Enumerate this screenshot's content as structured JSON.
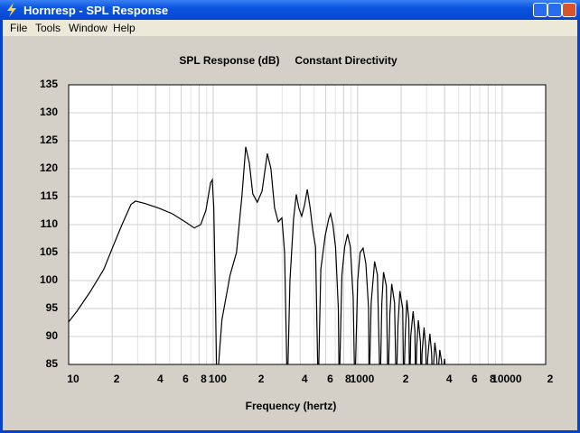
{
  "window": {
    "title": "Hornresp - SPL Response"
  },
  "menu": [
    "File",
    "Tools",
    "Window",
    "Help"
  ],
  "chart_data": {
    "type": "line",
    "title": "SPL Response (dB)",
    "subtitle": "Constant Directivity",
    "xlabel": "Frequency (hertz)",
    "xscale": "log",
    "grid": true,
    "color": "#000000",
    "xlim": [
      10,
      20000
    ],
    "ylim": [
      85,
      135
    ],
    "xticks": [
      10,
      {
        "value": 20,
        "label": "2"
      },
      {
        "value": 40,
        "label": "4"
      },
      {
        "value": 60,
        "label": "6"
      },
      {
        "value": 80,
        "label": "8"
      },
      100,
      {
        "value": 200,
        "label": "2"
      },
      {
        "value": 400,
        "label": "4"
      },
      {
        "value": 600,
        "label": "6"
      },
      {
        "value": 800,
        "label": "8"
      },
      1000,
      {
        "value": 2000,
        "label": "2"
      },
      {
        "value": 4000,
        "label": "4"
      },
      {
        "value": 6000,
        "label": "6"
      },
      {
        "value": 8000,
        "label": "8"
      },
      10000,
      {
        "value": 20000,
        "label": "2"
      }
    ],
    "xminorticks": [
      30,
      50,
      70,
      90,
      300,
      500,
      700,
      900,
      3000,
      5000,
      7000,
      9000
    ],
    "yticks": [
      85,
      90,
      95,
      100,
      105,
      110,
      115,
      120,
      125,
      130,
      135
    ],
    "x": [
      10,
      11.4,
      14.1,
      17.5,
      20.2,
      23.4,
      27,
      29,
      33.5,
      41.6,
      51.7,
      64,
      74,
      82,
      89,
      96,
      98.6,
      101,
      104,
      106,
      109,
      115,
      131,
      145,
      158,
      168,
      178,
      188,
      202,
      218,
      237,
      251,
      266,
      282,
      299,
      312,
      326,
      340,
      360,
      376,
      391,
      410,
      429,
      448,
      469,
      489,
      511,
      533,
      556,
      596,
      630,
      649,
      674,
      703,
      735,
      745,
      778,
      813,
      851,
      890,
      931,
      956,
      1000,
      1040,
      1090,
      1140,
      1190,
      1200,
      1240,
      1310,
      1370,
      1430,
      1470,
      1510,
      1580,
      1620,
      1670,
      1720,
      1800,
      1850,
      1900,
      1960,
      2050,
      2080,
      2140,
      2190,
      2260,
      2290,
      2330,
      2420,
      2490,
      2520,
      2560,
      2630,
      2720,
      2750,
      2790,
      2880,
      2960,
      3000,
      3050,
      3160,
      3250,
      3300,
      3360,
      3420,
      3530,
      3590,
      3640,
      3700,
      3810,
      3880,
      3930,
      3990,
      4080,
      4500
    ],
    "values": [
      92.6,
      94.5,
      98,
      102,
      106,
      110,
      113.6,
      114.2,
      113.8,
      113,
      112,
      110.5,
      109.4,
      110,
      112.5,
      117.5,
      118,
      113,
      95,
      80,
      85,
      93,
      101,
      105,
      115,
      123.9,
      121,
      115.5,
      114,
      116,
      122.7,
      120,
      113,
      110.5,
      111.2,
      105,
      80,
      100,
      111,
      115.4,
      113,
      111.5,
      113.5,
      116.3,
      113,
      109,
      106,
      80,
      102,
      108,
      111,
      112,
      110,
      106,
      95,
      80,
      101,
      106,
      108.3,
      106,
      97,
      80,
      100,
      105,
      105.8,
      103,
      95,
      80,
      96,
      103.4,
      101,
      80,
      96,
      101.5,
      99,
      80,
      94,
      99.4,
      96,
      80,
      92,
      98.1,
      95,
      80,
      91,
      96.5,
      93,
      80,
      90,
      94.5,
      91,
      80,
      88,
      92.9,
      89,
      80,
      87,
      91.6,
      88,
      80,
      86,
      90.5,
      87,
      80,
      85.5,
      88.9,
      86,
      80,
      85,
      87.6,
      85.5,
      80,
      84,
      86,
      83,
      75
    ]
  }
}
